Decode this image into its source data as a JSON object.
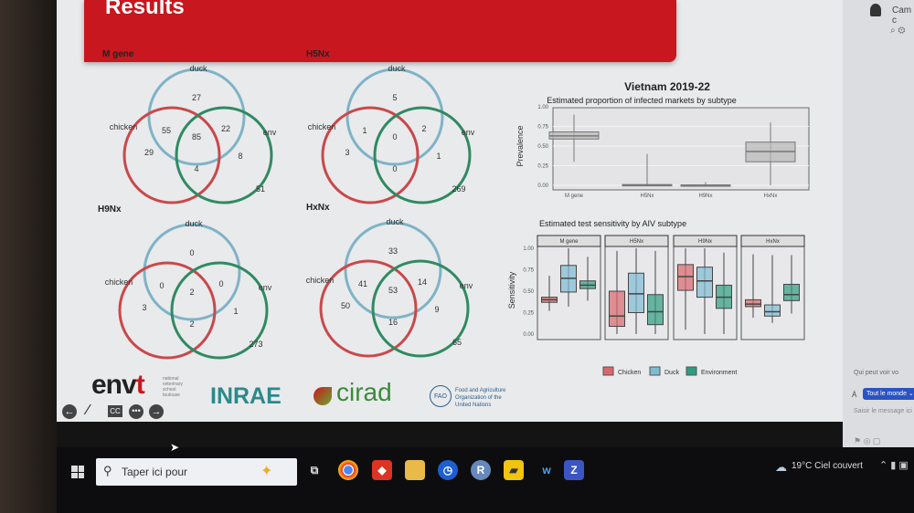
{
  "slide": {
    "title": "Results"
  },
  "venns": [
    {
      "title": "M gene",
      "labels": [
        "duck",
        "chicken",
        "env"
      ],
      "values": {
        "duck_only": "27",
        "chicken_only": "29",
        "env_only": "8",
        "chicken_duck": "55",
        "duck_env": "22",
        "chicken_env": "4",
        "all": "85",
        "none": "51"
      }
    },
    {
      "title": "H5Nx",
      "labels": [
        "duck",
        "chicken",
        "env"
      ],
      "values": {
        "duck_only": "5",
        "chicken_only": "3",
        "env_only": "1",
        "chicken_duck": "1",
        "duck_env": "2",
        "chicken_env": "0",
        "all": "0",
        "none": "269"
      }
    },
    {
      "title": "H9Nx",
      "labels": [
        "duck",
        "chicken",
        "env"
      ],
      "values": {
        "duck_only": "0",
        "chicken_only": "3",
        "env_only": "1",
        "chicken_duck": "0",
        "duck_env": "0",
        "chicken_env": "2",
        "all": "2",
        "none": "273"
      }
    },
    {
      "title": "HxNx",
      "labels": [
        "duck",
        "chicken",
        "env"
      ],
      "values": {
        "duck_only": "33",
        "chicken_only": "50",
        "env_only": "9",
        "chicken_duck": "41",
        "duck_env": "14",
        "chicken_env": "16",
        "all": "53",
        "none": "65"
      }
    }
  ],
  "chart_data": [
    {
      "type": "box",
      "title": "Vietnam 2019-22",
      "subtitle": "Estimated proportion of infected markets by subtype",
      "ylabel": "Prevalence",
      "ylim": [
        0,
        1
      ],
      "yticks": [
        "0.00",
        "0.25",
        "0.50",
        "0.75",
        "1.00"
      ],
      "grid": true,
      "categories": [
        "M gene",
        "H5Nx",
        "H9Nx",
        "HxNx"
      ],
      "boxes": [
        {
          "lo": 0.3,
          "q1": 0.59,
          "med": 0.63,
          "q3": 0.68,
          "hi": 0.9
        },
        {
          "lo": 0,
          "q1": 0,
          "med": 0,
          "q3": 0.01,
          "hi": 0.4
        },
        {
          "lo": 0,
          "q1": 0,
          "med": 0,
          "q3": 0.005,
          "hi": 0.04
        },
        {
          "lo": 0,
          "q1": 0.3,
          "med": 0.43,
          "q3": 0.55,
          "hi": 0.8
        }
      ],
      "color": "#b8b8b8"
    },
    {
      "type": "box",
      "title": "Estimated test sensitivity by AIV subtype",
      "ylabel": "Sensitivity",
      "ylim": [
        0,
        1
      ],
      "yticks": [
        "0.00",
        "0.25",
        "0.50",
        "0.75",
        "1.00"
      ],
      "legend": "bottom",
      "facets": [
        "M gene",
        "H5Nx",
        "H9Nx",
        "HxNx"
      ],
      "series": [
        {
          "name": "Chicken",
          "color": "#d9686c",
          "boxes": [
            {
              "lo": 0.27,
              "q1": 0.37,
              "med": 0.4,
              "q3": 0.43,
              "hi": 0.68
            },
            {
              "lo": 0,
              "q1": 0.09,
              "med": 0.21,
              "q3": 0.5,
              "hi": 0.97
            },
            {
              "lo": 0.05,
              "q1": 0.51,
              "med": 0.67,
              "q3": 0.81,
              "hi": 1
            },
            {
              "lo": 0.19,
              "q1": 0.32,
              "med": 0.35,
              "q3": 0.4,
              "hi": 0.93
            }
          ]
        },
        {
          "name": "Duck",
          "color": "#7fbcd4",
          "boxes": [
            {
              "lo": 0.32,
              "q1": 0.49,
              "med": 0.65,
              "q3": 0.8,
              "hi": 1
            },
            {
              "lo": 0,
              "q1": 0.25,
              "med": 0.47,
              "q3": 0.71,
              "hi": 1
            },
            {
              "lo": 0,
              "q1": 0.43,
              "med": 0.62,
              "q3": 0.78,
              "hi": 1
            },
            {
              "lo": 0.13,
              "q1": 0.21,
              "med": 0.26,
              "q3": 0.34,
              "hi": 0.92
            }
          ]
        },
        {
          "name": "Environment",
          "color": "#2f9c80",
          "boxes": [
            {
              "lo": 0.39,
              "q1": 0.53,
              "med": 0.57,
              "q3": 0.62,
              "hi": 0.9
            },
            {
              "lo": 0,
              "q1": 0.11,
              "med": 0.26,
              "q3": 0.46,
              "hi": 0.97
            },
            {
              "lo": 0,
              "q1": 0.3,
              "med": 0.43,
              "q3": 0.57,
              "hi": 0.95
            },
            {
              "lo": 0.24,
              "q1": 0.39,
              "med": 0.46,
              "q3": 0.58,
              "hi": 0.92
            }
          ]
        }
      ]
    }
  ],
  "logos": {
    "envt": "envt",
    "envt_sub": "national veterinary school toulouse",
    "inrae": "INRAE",
    "cirad": "cirad",
    "fao": "Food and Agriculture Organization of the United Nations"
  },
  "side_panel": {
    "user": "Cam c",
    "who_can_see": "Qui peut voir vo",
    "to_label": "À",
    "audience": "Tout le monde",
    "message_placeholder": "Saisir le message ici"
  },
  "taskbar": {
    "search_placeholder": "Taper ici pour",
    "weather": "19°C Ciel couvert"
  }
}
